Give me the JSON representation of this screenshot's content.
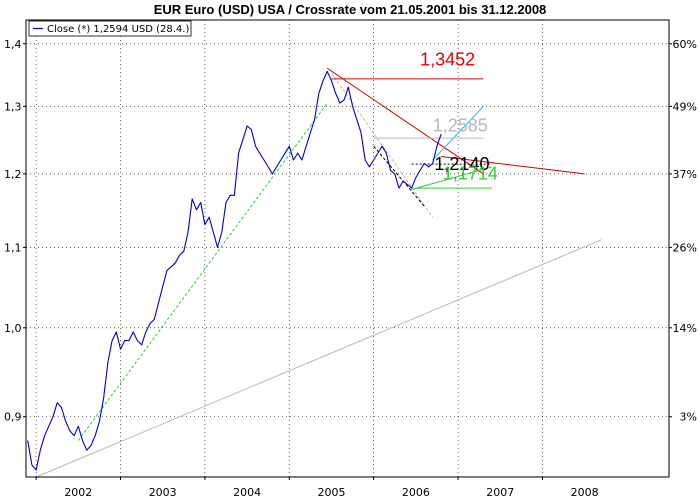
{
  "chart_data": {
    "type": "line",
    "title": "EUR Euro (USD) USA / Crossrate vom 21.05.2001 bis 31.12.2008",
    "legend": {
      "label": "Close (*) 1,2594 USD (28.4.)",
      "position": "top-left",
      "color": "#0000cc"
    },
    "grid": true,
    "x_axis": {
      "range": [
        2001.38,
        2009.0
      ],
      "ticks": [
        "2002",
        "2003",
        "2004",
        "2005",
        "2006",
        "2007",
        "2008"
      ]
    },
    "y_axis_left": {
      "scale": "log",
      "range": [
        0.838,
        1.44
      ],
      "ticks": [
        "0,9",
        "1,0",
        "1,1",
        "1,2",
        "1,3",
        "1,4"
      ]
    },
    "y_axis_right": {
      "ticks": [
        "3%",
        "14%",
        "26%",
        "37%",
        "49%",
        "60%"
      ]
    },
    "series": [
      {
        "name": "Close (*) 1,2594 USD (28.4.)",
        "color": "#0000cc",
        "x": [
          2001.4,
          2001.45,
          2001.5,
          2001.55,
          2001.6,
          2001.65,
          2001.7,
          2001.75,
          2001.8,
          2001.85,
          2001.9,
          2001.95,
          2002.0,
          2002.05,
          2002.1,
          2002.15,
          2002.2,
          2002.25,
          2002.3,
          2002.35,
          2002.4,
          2002.45,
          2002.5,
          2002.55,
          2002.6,
          2002.65,
          2002.7,
          2002.75,
          2002.8,
          2002.85,
          2002.9,
          2002.95,
          2003.0,
          2003.05,
          2003.1,
          2003.15,
          2003.2,
          2003.25,
          2003.3,
          2003.35,
          2003.4,
          2003.45,
          2003.5,
          2003.55,
          2003.6,
          2003.65,
          2003.7,
          2003.75,
          2003.8,
          2003.85,
          2003.9,
          2003.95,
          2004.0,
          2004.05,
          2004.1,
          2004.15,
          2004.2,
          2004.25,
          2004.3,
          2004.35,
          2004.4,
          2004.45,
          2004.5,
          2004.55,
          2004.6,
          2004.65,
          2004.7,
          2004.75,
          2004.8,
          2004.85,
          2004.9,
          2004.95,
          2005.0,
          2005.05,
          2005.1,
          2005.15,
          2005.2,
          2005.25,
          2005.3,
          2005.35,
          2005.4,
          2005.45,
          2005.5,
          2005.55,
          2005.6,
          2005.65,
          2005.7,
          2005.75,
          2005.8,
          2005.85,
          2005.9,
          2005.95,
          2006.0,
          2006.05,
          2006.1,
          2006.15,
          2006.2,
          2006.25,
          2006.3
        ],
        "values": [
          0.875,
          0.85,
          0.845,
          0.865,
          0.88,
          0.89,
          0.9,
          0.915,
          0.91,
          0.895,
          0.885,
          0.88,
          0.89,
          0.875,
          0.865,
          0.87,
          0.88,
          0.895,
          0.92,
          0.96,
          0.985,
          0.995,
          0.975,
          0.985,
          0.985,
          0.995,
          0.985,
          0.98,
          0.995,
          1.005,
          1.01,
          1.03,
          1.05,
          1.07,
          1.075,
          1.08,
          1.09,
          1.095,
          1.12,
          1.165,
          1.15,
          1.16,
          1.13,
          1.14,
          1.12,
          1.1,
          1.12,
          1.16,
          1.17,
          1.17,
          1.23,
          1.25,
          1.27,
          1.265,
          1.24,
          1.23,
          1.22,
          1.21,
          1.2,
          1.21,
          1.22,
          1.23,
          1.24,
          1.22,
          1.23,
          1.22,
          1.24,
          1.26,
          1.28,
          1.32,
          1.34,
          1.355,
          1.34,
          1.32,
          1.305,
          1.31,
          1.33,
          1.3,
          1.28,
          1.26,
          1.22,
          1.21,
          1.22,
          1.23,
          1.24,
          1.23,
          1.205,
          1.2,
          1.18,
          1.19,
          1.185,
          1.18,
          1.195,
          1.205,
          1.215,
          1.21,
          1.215,
          1.24,
          1.258
        ]
      }
    ],
    "annotations": [
      {
        "label": "1,3452",
        "value": 1.3452,
        "color": "#e00000"
      },
      {
        "label": "1,2585",
        "value": 1.2585,
        "color": "#b8b8b8"
      },
      {
        "label": "1,2140",
        "value": 1.214,
        "color": "#000000"
      },
      {
        "label": "1,1714",
        "value": 1.1714,
        "color": "#33cc33"
      }
    ],
    "trend_lines": [
      {
        "name": "long-term support",
        "color": "#b8b8b8",
        "from": [
          2001.5,
          0.838
        ],
        "to": [
          2008.2,
          1.11
        ]
      },
      {
        "name": "uptrend",
        "color": "#33cc33",
        "style": "dashed",
        "from": [
          2002.0,
          0.875
        ],
        "to": [
          2004.95,
          1.305
        ]
      },
      {
        "name": "downtrend",
        "color": "#cc0000",
        "from": [
          2004.95,
          1.36
        ],
        "to": [
          2006.8,
          1.2
        ]
      },
      {
        "name": "channel-extension",
        "color": "#cc0000",
        "from": [
          2006.3,
          1.225
        ],
        "to": [
          2008.0,
          1.2
        ]
      },
      {
        "name": "retracement-dashed",
        "color": "#b8b8b8",
        "style": "dashed",
        "from": [
          2005.0,
          1.352
        ],
        "to": [
          2006.2,
          1.14
        ]
      },
      {
        "name": "short-downtrend-dashed",
        "color": "#000000",
        "style": "dashed",
        "from": [
          2005.5,
          1.24
        ],
        "to": [
          2006.1,
          1.155
        ]
      },
      {
        "name": "short-uptrend",
        "color": "#33cc33",
        "from": [
          2005.95,
          1.178
        ],
        "to": [
          2006.9,
          1.21
        ]
      },
      {
        "name": "breakout",
        "color": "#00bfff",
        "from": [
          2006.2,
          1.22
        ],
        "to": [
          2006.8,
          1.3
        ]
      }
    ],
    "level_lines": [
      {
        "name": "resistance-1-3452",
        "color": "#e00000",
        "value": 1.343,
        "x_range": [
          2005.0,
          2006.8
        ]
      },
      {
        "name": "level-1-2585",
        "color": "#b8b8b8",
        "value": 1.252,
        "x_range": [
          2005.5,
          2006.8
        ]
      },
      {
        "name": "level-1-2140",
        "color": "#000000",
        "style": "dashed",
        "value": 1.214,
        "x_range": [
          2005.95,
          2006.9
        ]
      },
      {
        "name": "support-1-1714",
        "color": "#33cc33",
        "value": 1.18,
        "x_range": [
          2006.0,
          2006.9
        ]
      }
    ]
  }
}
